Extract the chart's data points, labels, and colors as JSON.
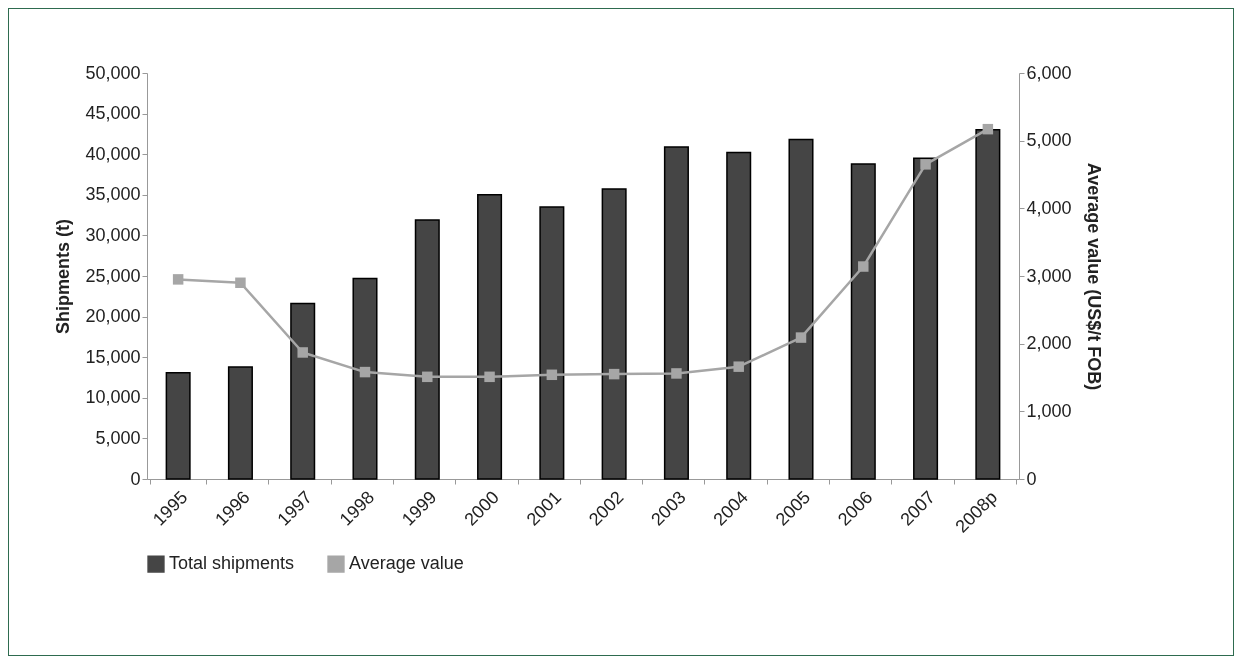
{
  "chart_data": {
    "type": "bar",
    "categories": [
      "1995",
      "1996",
      "1997",
      "1998",
      "1999",
      "2000",
      "2001",
      "2002",
      "2003",
      "2004",
      "2005",
      "2006",
      "2007",
      "2008p"
    ],
    "series": [
      {
        "name": "Total shipments",
        "color": "#454545",
        "values": [
          13100,
          13800,
          21600,
          24700,
          31900,
          35000,
          33500,
          35700,
          40900,
          40200,
          41800,
          38800,
          39500,
          43000
        ]
      },
      {
        "name": "Average value",
        "type": "line",
        "axis": "y2",
        "color": "#a6a6a6",
        "line_style": "solid",
        "values": [
          2950,
          2900,
          1870,
          1580,
          1510,
          1510,
          1540,
          1550,
          1560,
          1660,
          2090,
          3140,
          4650,
          5170
        ]
      }
    ],
    "ylabel": "Shipments (t)",
    "y2label": "Average value (US$/t FOB)",
    "ylim": [
      0,
      50000
    ],
    "yticks": [
      0,
      {
        "value": 5000,
        "label": "5,000"
      },
      {
        "value": 10000,
        "label": "10,000"
      },
      {
        "value": 15000,
        "label": "15,000"
      },
      {
        "value": 20000,
        "label": "20,000"
      },
      {
        "value": 25000,
        "label": "25,000"
      },
      {
        "value": 30000,
        "label": "30,000"
      },
      {
        "value": 35000,
        "label": "35,000"
      },
      {
        "value": 40000,
        "label": "40,000"
      },
      {
        "value": 45000,
        "label": "45,000"
      },
      {
        "value": 50000,
        "label": "50,000"
      }
    ],
    "y2lim": [
      0,
      6000
    ],
    "y2ticks": [
      0,
      {
        "value": 1000,
        "label": "1,000"
      },
      {
        "value": 2000,
        "label": "2,000"
      },
      {
        "value": 3000,
        "label": "3,000"
      },
      {
        "value": 4000,
        "label": "4,000"
      },
      {
        "value": 5000,
        "label": "5,000"
      },
      {
        "value": 6000,
        "label": "6,000"
      }
    ],
    "marker": "square",
    "legend": "bottom"
  }
}
